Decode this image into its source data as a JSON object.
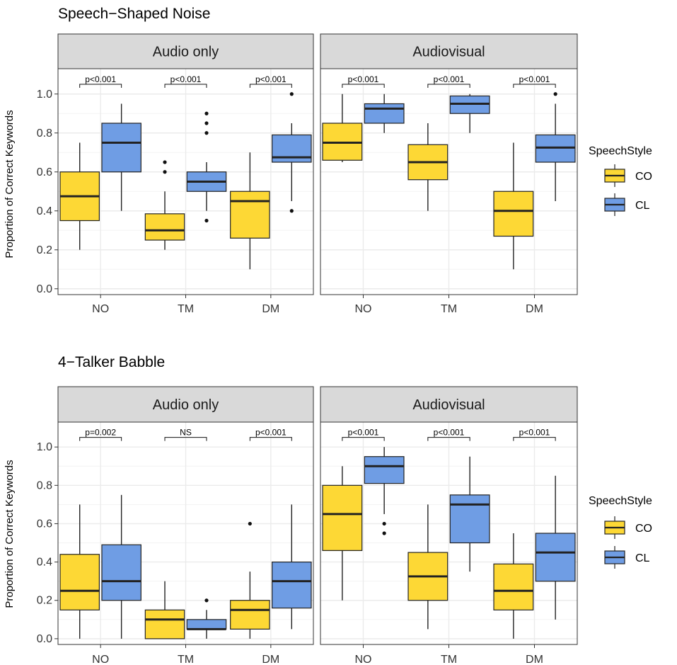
{
  "colors": {
    "CO": "#FDD835",
    "CL": "#6F9DE4",
    "strip": "#d9d9d9",
    "grid": "#ebebeb",
    "panel_border": "#333333"
  },
  "chart_data": [
    {
      "type": "boxplot",
      "title": "Speech−Shaped Noise",
      "ylabel": "Proportion of Correct Keywords",
      "ylim": [
        -0.03,
        1.13
      ],
      "yticks": [
        0.0,
        0.2,
        0.4,
        0.6,
        0.8,
        1.0
      ],
      "ytick_labels": [
        "0.0",
        "0.2",
        "0.4",
        "0.6",
        "0.8",
        "1.0"
      ],
      "categories": [
        "NO",
        "TM",
        "DM"
      ],
      "legend": {
        "title": "SpeechStyle",
        "entries": [
          "CO",
          "CL"
        ]
      },
      "facets": [
        {
          "strip": "Audio only",
          "annotations": [
            "p<0.001",
            "p<0.001",
            "p<0.001"
          ],
          "boxes": {
            "CO": [
              {
                "min": 0.2,
                "q1": 0.35,
                "median": 0.475,
                "q3": 0.6,
                "max": 0.75,
                "outliers": []
              },
              {
                "min": 0.2,
                "q1": 0.25,
                "median": 0.3,
                "q3": 0.385,
                "max": 0.5,
                "outliers": [
                  0.6,
                  0.65
                ]
              },
              {
                "min": 0.1,
                "q1": 0.26,
                "median": 0.45,
                "q3": 0.5,
                "max": 0.7,
                "outliers": []
              }
            ],
            "CL": [
              {
                "min": 0.4,
                "q1": 0.6,
                "median": 0.75,
                "q3": 0.85,
                "max": 0.95,
                "outliers": []
              },
              {
                "min": 0.4,
                "q1": 0.5,
                "median": 0.55,
                "q3": 0.6,
                "max": 0.65,
                "outliers": [
                  0.35,
                  0.8,
                  0.85,
                  0.9
                ]
              },
              {
                "min": 0.45,
                "q1": 0.65,
                "median": 0.675,
                "q3": 0.79,
                "max": 0.85,
                "outliers": [
                  0.4,
                  1.0
                ]
              }
            ]
          }
        },
        {
          "strip": "Audiovisual",
          "annotations": [
            "p<0.001",
            "p<0.001",
            "p<0.001"
          ],
          "boxes": {
            "CO": [
              {
                "min": 0.65,
                "q1": 0.66,
                "median": 0.75,
                "q3": 0.85,
                "max": 1.0,
                "outliers": []
              },
              {
                "min": 0.4,
                "q1": 0.56,
                "median": 0.65,
                "q3": 0.74,
                "max": 0.85,
                "outliers": []
              },
              {
                "min": 0.1,
                "q1": 0.27,
                "median": 0.4,
                "q3": 0.5,
                "max": 0.75,
                "outliers": []
              }
            ],
            "CL": [
              {
                "min": 0.8,
                "q1": 0.85,
                "median": 0.925,
                "q3": 0.95,
                "max": 1.0,
                "outliers": []
              },
              {
                "min": 0.8,
                "q1": 0.9,
                "median": 0.95,
                "q3": 0.99,
                "max": 1.0,
                "outliers": []
              },
              {
                "min": 0.45,
                "q1": 0.65,
                "median": 0.725,
                "q3": 0.79,
                "max": 0.95,
                "outliers": [
                  1.0
                ]
              }
            ]
          }
        }
      ]
    },
    {
      "type": "boxplot",
      "title": "4−Talker Babble",
      "ylabel": "Proportion of Correct Keywords",
      "ylim": [
        -0.03,
        1.13
      ],
      "yticks": [
        0.0,
        0.2,
        0.4,
        0.6,
        0.8,
        1.0
      ],
      "ytick_labels": [
        "0.0",
        "0.2",
        "0.4",
        "0.6",
        "0.8",
        "1.0"
      ],
      "categories": [
        "NO",
        "TM",
        "DM"
      ],
      "legend": {
        "title": "SpeechStyle",
        "entries": [
          "CO",
          "CL"
        ]
      },
      "facets": [
        {
          "strip": "Audio only",
          "annotations": [
            "p=0.002",
            "NS",
            "p<0.001"
          ],
          "boxes": {
            "CO": [
              {
                "min": 0.0,
                "q1": 0.15,
                "median": 0.25,
                "q3": 0.44,
                "max": 0.7,
                "outliers": []
              },
              {
                "min": 0.0,
                "q1": 0.0,
                "median": 0.1,
                "q3": 0.15,
                "max": 0.3,
                "outliers": []
              },
              {
                "min": 0.0,
                "q1": 0.05,
                "median": 0.15,
                "q3": 0.2,
                "max": 0.35,
                "outliers": [
                  0.6
                ]
              }
            ],
            "CL": [
              {
                "min": 0.0,
                "q1": 0.2,
                "median": 0.3,
                "q3": 0.49,
                "max": 0.75,
                "outliers": []
              },
              {
                "min": 0.0,
                "q1": 0.05,
                "median": 0.05,
                "q3": 0.1,
                "max": 0.15,
                "outliers": [
                  0.2
                ]
              },
              {
                "min": 0.05,
                "q1": 0.16,
                "median": 0.3,
                "q3": 0.4,
                "max": 0.7,
                "outliers": []
              }
            ]
          }
        },
        {
          "strip": "Audiovisual",
          "annotations": [
            "p<0.001",
            "p<0.001",
            "p<0.001"
          ],
          "boxes": {
            "CO": [
              {
                "min": 0.2,
                "q1": 0.46,
                "median": 0.65,
                "q3": 0.8,
                "max": 0.9,
                "outliers": []
              },
              {
                "min": 0.05,
                "q1": 0.2,
                "median": 0.325,
                "q3": 0.45,
                "max": 0.7,
                "outliers": []
              },
              {
                "min": 0.0,
                "q1": 0.15,
                "median": 0.25,
                "q3": 0.39,
                "max": 0.55,
                "outliers": []
              }
            ],
            "CL": [
              {
                "min": 0.65,
                "q1": 0.81,
                "median": 0.9,
                "q3": 0.95,
                "max": 1.0,
                "outliers": [
                  0.55,
                  0.6
                ]
              },
              {
                "min": 0.35,
                "q1": 0.5,
                "median": 0.7,
                "q3": 0.75,
                "max": 0.95,
                "outliers": []
              },
              {
                "min": 0.1,
                "q1": 0.3,
                "median": 0.45,
                "q3": 0.55,
                "max": 0.85,
                "outliers": []
              }
            ]
          }
        }
      ]
    }
  ]
}
